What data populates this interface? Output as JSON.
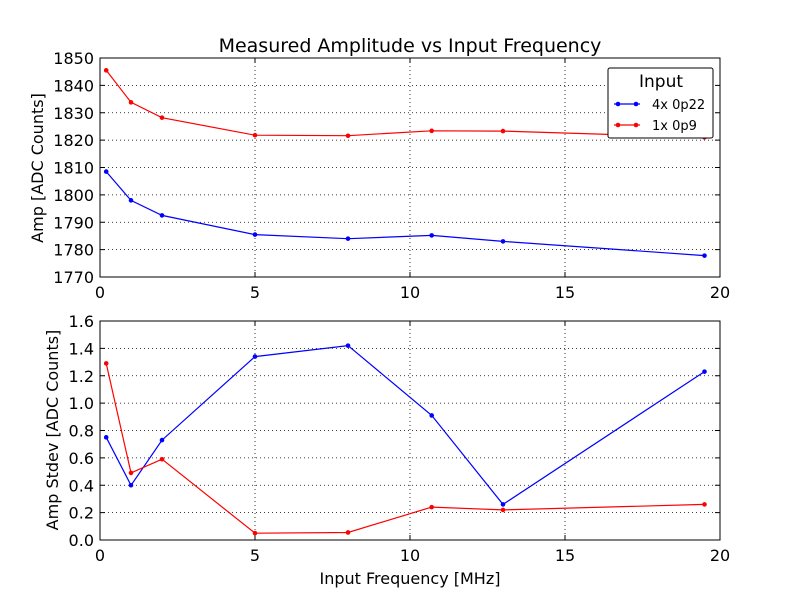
{
  "chart_data": [
    {
      "type": "line",
      "title": "Measured Amplitude vs Input Frequency",
      "xlabel": "",
      "ylabel": "Amp [ADC Counts]",
      "xlim": [
        0,
        20
      ],
      "ylim": [
        1770,
        1850
      ],
      "xticks": [
        0,
        5,
        10,
        15,
        20
      ],
      "yticks": [
        1770,
        1780,
        1790,
        1800,
        1810,
        1820,
        1830,
        1840,
        1850
      ],
      "grid": true,
      "legend": {
        "title": "Input",
        "placement": "top-right"
      },
      "series": [
        {
          "name": "4x 0p22",
          "color": "#0000ff",
          "x": [
            0.2,
            1.0,
            2.0,
            5.0,
            8.0,
            10.7,
            13.0,
            19.5
          ],
          "y": [
            1808.5,
            1798.0,
            1792.5,
            1785.5,
            1784.0,
            1785.2,
            1783.0,
            1777.8
          ]
        },
        {
          "name": "1x 0p9",
          "color": "#ff0000",
          "x": [
            0.2,
            1.0,
            2.0,
            5.0,
            8.0,
            10.7,
            13.0,
            19.5
          ],
          "y": [
            1845.5,
            1833.8,
            1828.2,
            1821.8,
            1821.6,
            1823.4,
            1823.3,
            1821.0
          ]
        }
      ]
    },
    {
      "type": "line",
      "title": "",
      "xlabel": "Input Frequency [MHz]",
      "ylabel": "Amp Stdev [ADC Counts]",
      "xlim": [
        0,
        20
      ],
      "ylim": [
        0.0,
        1.6
      ],
      "xticks": [
        0,
        5,
        10,
        15,
        20
      ],
      "yticks": [
        0.0,
        0.2,
        0.4,
        0.6,
        0.8,
        1.0,
        1.2,
        1.4,
        1.6
      ],
      "grid": true,
      "series": [
        {
          "name": "4x 0p22",
          "color": "#0000ff",
          "x": [
            0.2,
            1.0,
            2.0,
            5.0,
            8.0,
            10.7,
            13.0,
            19.5
          ],
          "y": [
            0.75,
            0.4,
            0.73,
            1.34,
            1.42,
            0.91,
            0.26,
            1.23
          ]
        },
        {
          "name": "1x 0p9",
          "color": "#ff0000",
          "x": [
            0.2,
            1.0,
            2.0,
            5.0,
            8.0,
            10.7,
            13.0,
            19.5
          ],
          "y": [
            1.29,
            0.49,
            0.59,
            0.05,
            0.055,
            0.24,
            0.22,
            0.26
          ]
        }
      ]
    }
  ]
}
